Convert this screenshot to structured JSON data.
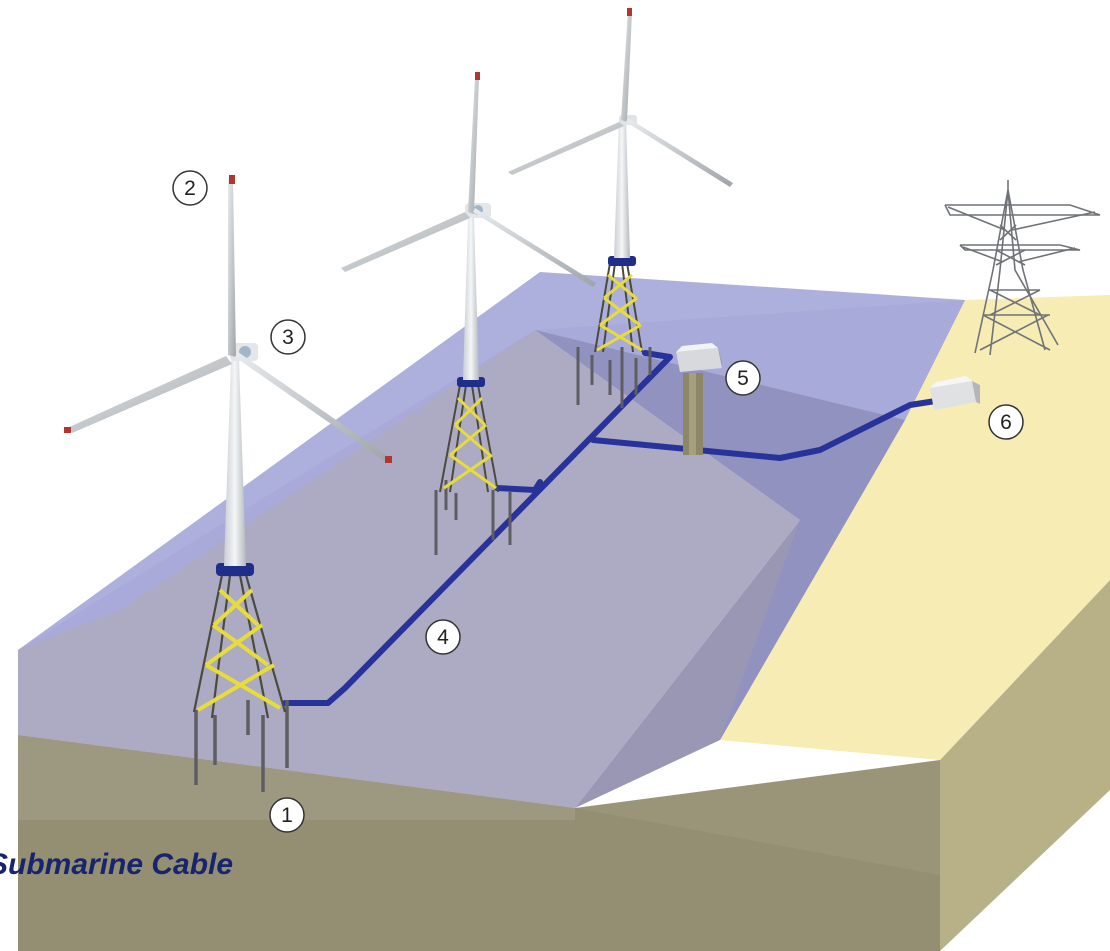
{
  "callouts": [
    {
      "id": "foundation",
      "label": "1"
    },
    {
      "id": "turbine",
      "label": "2"
    },
    {
      "id": "nacelle",
      "label": "3"
    },
    {
      "id": "submarine-cable",
      "label": "4"
    },
    {
      "id": "offshore-substation",
      "label": "5"
    },
    {
      "id": "onshore-substation",
      "label": "6"
    }
  ],
  "caption": "Submarine Cable",
  "colors": {
    "sea_surface": "#a9abdb",
    "seabed_top": "#a6a2b0",
    "shore": "#f6ecb4",
    "ground_front": "#9a9478",
    "ground_side": "#bfb88e",
    "jacket": "#e7dc3a",
    "cable": "#27339a",
    "caption": "#17246e"
  }
}
